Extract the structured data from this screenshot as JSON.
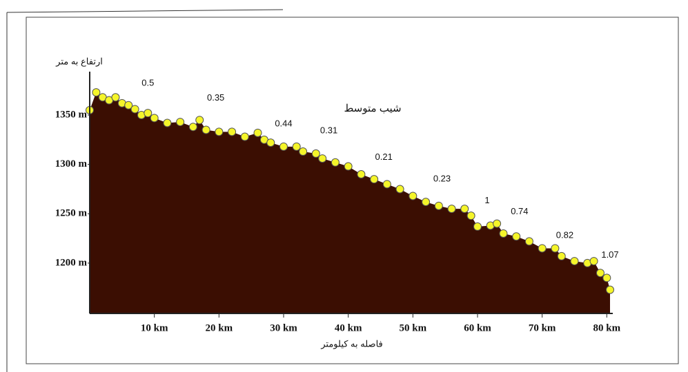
{
  "chart_data": {
    "type": "area",
    "title": "شیب متوسط",
    "y_label": "ارتفاع به متر",
    "x_label": "فاصله به کیلومتر",
    "x": [
      0,
      1,
      2,
      3,
      4,
      5,
      6,
      7,
      8,
      9,
      10,
      12,
      14,
      16,
      17,
      18,
      20,
      22,
      24,
      26,
      27,
      28,
      30,
      32,
      33,
      35,
      36,
      38,
      40,
      42,
      44,
      46,
      48,
      50,
      52,
      54,
      56,
      58,
      59,
      60,
      62,
      63,
      64,
      66,
      68,
      70,
      72,
      73,
      75,
      77,
      78,
      79,
      80,
      80.5
    ],
    "values": [
      1355,
      1373,
      1368,
      1365,
      1368,
      1362,
      1360,
      1356,
      1350,
      1352,
      1347,
      1342,
      1343,
      1338,
      1345,
      1335,
      1333,
      1333,
      1328,
      1332,
      1325,
      1322,
      1318,
      1318,
      1313,
      1311,
      1306,
      1302,
      1298,
      1290,
      1285,
      1280,
      1275,
      1268,
      1262,
      1258,
      1255,
      1255,
      1248,
      1237,
      1238,
      1240,
      1230,
      1227,
      1222,
      1215,
      1215,
      1207,
      1202,
      1200,
      1202,
      1190,
      1185,
      1173
    ],
    "fill_color": "#3b0e02",
    "marker_color": "#f5f52a",
    "slope_labels": [
      0.5,
      0.35,
      0.44,
      0.31,
      0.21,
      0.23,
      1,
      0.74,
      0.82,
      1.07
    ],
    "xlim": [
      0,
      80.5
    ],
    "ylim": [
      1149,
      1394
    ],
    "xticks": [
      {
        "value": 10,
        "label": "10 km"
      },
      {
        "value": 20,
        "label": "20 km"
      },
      {
        "value": 30,
        "label": "30 km"
      },
      {
        "value": 40,
        "label": "40 km"
      },
      {
        "value": 50,
        "label": "50 km"
      },
      {
        "value": 60,
        "label": "60 km"
      },
      {
        "value": 70,
        "label": "70 km"
      },
      {
        "value": 80,
        "label": "80 km"
      }
    ],
    "yticks": [
      {
        "value": 1200,
        "label": "1200 m"
      },
      {
        "value": 1250,
        "label": "1250 m"
      },
      {
        "value": 1300,
        "label": "1300 m"
      },
      {
        "value": 1350,
        "label": "1350 m"
      }
    ]
  }
}
